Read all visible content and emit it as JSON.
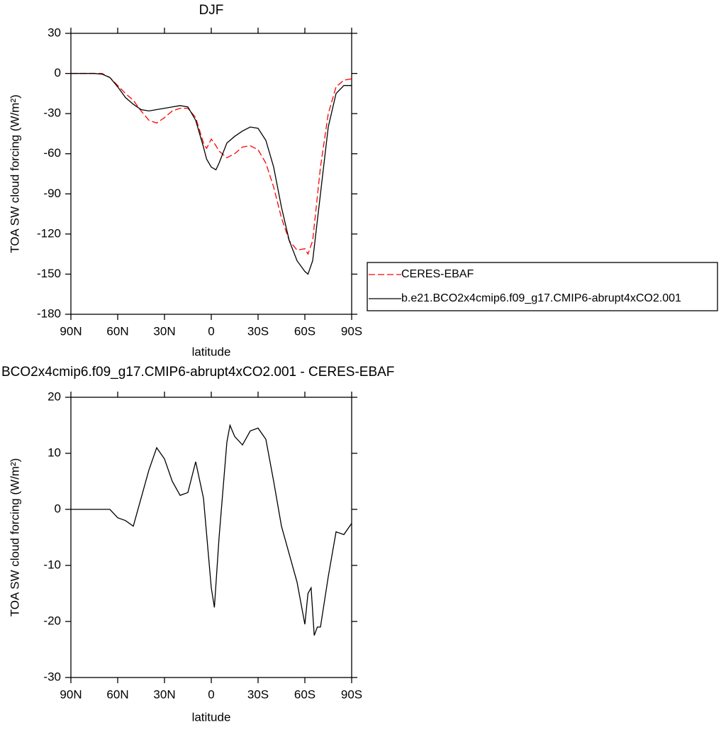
{
  "chart_data": [
    {
      "type": "line",
      "title": "DJF",
      "xlabel": "latitude",
      "ylabel": "TOA SW cloud forcing (W/m²)",
      "x": [
        90,
        85,
        80,
        75,
        70,
        65,
        60,
        55,
        50,
        45,
        40,
        35,
        30,
        25,
        20,
        15,
        10,
        5,
        3,
        0,
        -3,
        -5,
        -10,
        -15,
        -20,
        -25,
        -30,
        -35,
        -40,
        -45,
        -50,
        -55,
        -60,
        -62,
        -65,
        -70,
        -75,
        -80,
        -85,
        -90
      ],
      "series": [
        {
          "name": "CERES-EBAF",
          "color": "#ff0000",
          "dash": true,
          "values": [
            0,
            0,
            0,
            0,
            0,
            -3,
            -9,
            -15,
            -20,
            -28,
            -35,
            -37,
            -33,
            -28,
            -26,
            -26,
            -33,
            -52,
            -56,
            -49,
            -54,
            -58,
            -63,
            -60,
            -55,
            -54,
            -57,
            -67,
            -85,
            -108,
            -125,
            -132,
            -131,
            -135,
            -125,
            -70,
            -30,
            -10,
            -5,
            -4
          ]
        },
        {
          "name": "b.e21.BCO2x4cmip6.f09_g17.CMIP6-abrupt4xCO2.001",
          "color": "#000000",
          "dash": false,
          "values": [
            0,
            0,
            0,
            0,
            -0.5,
            -3,
            -10,
            -18,
            -23,
            -27,
            -28,
            -27,
            -26,
            -25,
            -24,
            -25,
            -35,
            -55,
            -64,
            -70,
            -72,
            -67,
            -52,
            -47,
            -43,
            -40,
            -41,
            -50,
            -70,
            -100,
            -125,
            -140,
            -148,
            -150,
            -140,
            -90,
            -40,
            -15,
            -9,
            -9
          ]
        }
      ],
      "xlim": [
        90,
        -90
      ],
      "xticks": [
        {
          "value": 90,
          "label": "90N"
        },
        {
          "value": 60,
          "label": "60N"
        },
        {
          "value": 30,
          "label": "30N"
        },
        0,
        {
          "value": -30,
          "label": "30S"
        },
        {
          "value": -60,
          "label": "60S"
        },
        {
          "value": -90,
          "label": "90S"
        }
      ],
      "ylim": [
        -180,
        30
      ],
      "yticks": [
        -180,
        -150,
        -120,
        -90,
        -60,
        -30,
        0,
        30
      ],
      "legend": "right"
    },
    {
      "type": "line",
      "title": "BCO2x4cmip6.f09_g17.CMIP6-abrupt4xCO2.001 - CERES-EBAF",
      "xlabel": "latitude",
      "ylabel": "TOA SW cloud forcing (W/m²)",
      "x": [
        90,
        85,
        80,
        75,
        70,
        65,
        60,
        55,
        50,
        45,
        40,
        35,
        30,
        25,
        20,
        15,
        10,
        5,
        0,
        -2,
        -5,
        -10,
        -12,
        -15,
        -20,
        -25,
        -30,
        -35,
        -40,
        -45,
        -50,
        -55,
        -60,
        -62,
        -64,
        -66,
        -68,
        -70,
        -75,
        -80,
        -85,
        -90
      ],
      "series": [
        {
          "color": "#000000",
          "dash": false,
          "values": [
            0,
            0,
            0,
            0,
            0,
            0,
            -1.5,
            -2,
            -3,
            2,
            7,
            11,
            9,
            5,
            2.5,
            3,
            8.5,
            2,
            -14,
            -17.5,
            -5,
            12,
            15,
            13,
            11.5,
            14,
            14.5,
            12.5,
            5,
            -3,
            -8,
            -13,
            -20.5,
            -15,
            -14,
            -22.5,
            -21,
            -21,
            -12,
            -4,
            -4.5,
            -2.5
          ]
        }
      ],
      "xlim": [
        90,
        -90
      ],
      "xticks": [
        {
          "value": 90,
          "label": "90N"
        },
        {
          "value": 60,
          "label": "60N"
        },
        {
          "value": 30,
          "label": "30N"
        },
        0,
        {
          "value": -30,
          "label": "30S"
        },
        {
          "value": -60,
          "label": "60S"
        },
        {
          "value": -90,
          "label": "90S"
        }
      ],
      "ylim": [
        -30,
        20
      ],
      "yticks": [
        -30,
        -20,
        -10,
        0,
        10,
        20
      ]
    }
  ]
}
